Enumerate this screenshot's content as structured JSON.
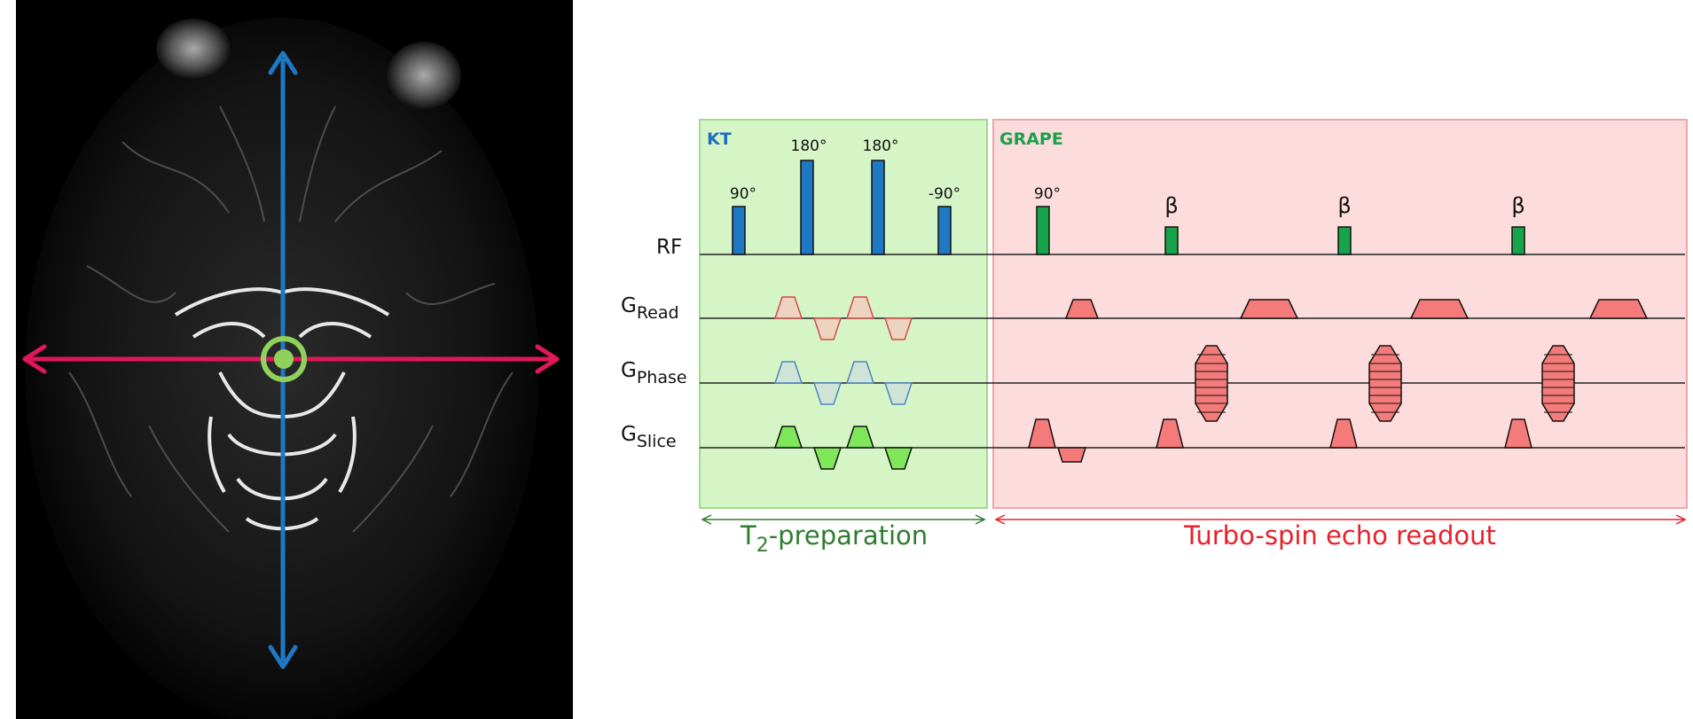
{
  "boxes": {
    "kt": {
      "title": "KT",
      "title_color": "#1f6fbf",
      "fill": "#d6f5c6",
      "stroke": "#9fdc8c"
    },
    "grape": {
      "title": "GRAPE",
      "title_color": "#1aa14a",
      "fill": "#fcdcdc",
      "stroke": "#f0a6a6"
    }
  },
  "rows": {
    "rf": "RF",
    "g_read": {
      "main": "G",
      "sub": "Read"
    },
    "g_phase": {
      "main": "G",
      "sub": "Phase"
    },
    "g_slice": {
      "main": "G",
      "sub": "Slice"
    }
  },
  "pulses": {
    "kt": [
      "90°",
      "180°",
      "180°",
      "-90°"
    ],
    "grape": [
      "90°",
      "β",
      "β",
      "β"
    ]
  },
  "spans": {
    "t2prep": {
      "main": "T",
      "sub": "2",
      "rest": "-preparation",
      "color": "#2e7d2e"
    },
    "tse": {
      "text": "Turbo-spin echo readout",
      "color": "#e8202a"
    }
  },
  "colors": {
    "kt_pulse": "#1f78c4",
    "grape_pulse": "#17a34a",
    "blue_arrow": "#1f78c4",
    "red_arrow": "#e0185a",
    "target_ring": "#8fd15a",
    "grad_fill_red": "#f57b7b",
    "grad_fill_green": "#7ee85a"
  }
}
